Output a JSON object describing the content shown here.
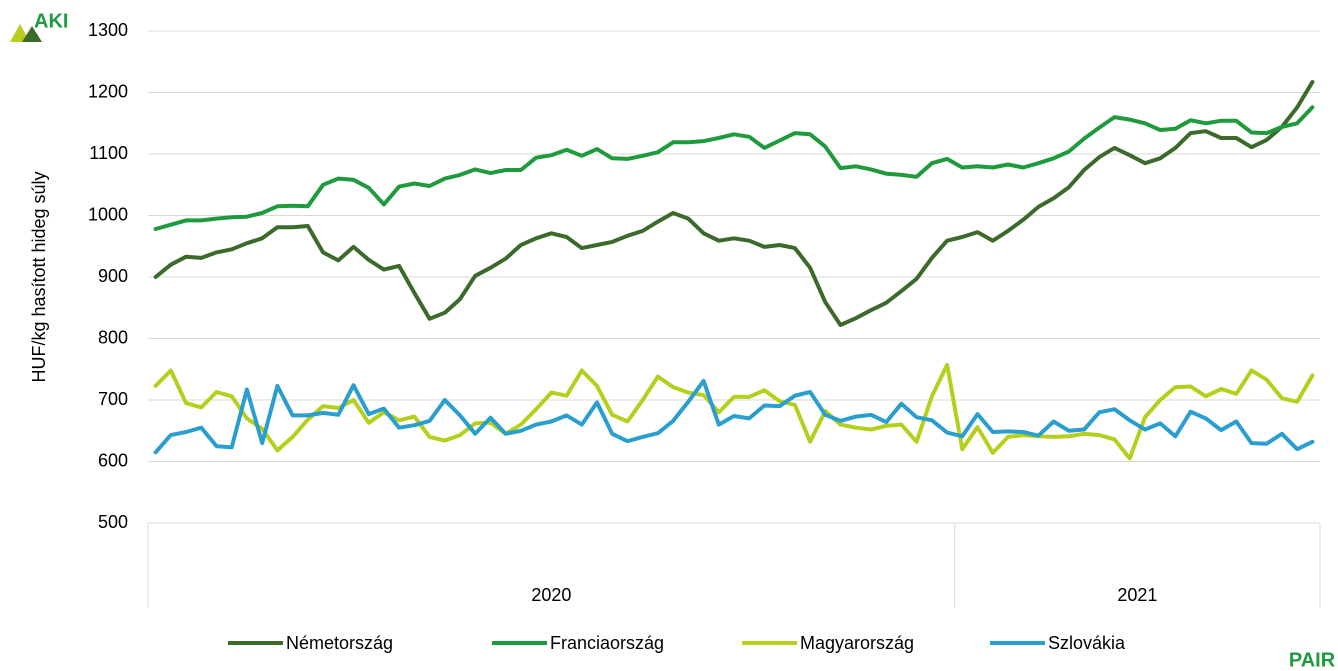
{
  "chart_data": {
    "type": "line",
    "y_label": "HUF/kg hasított hideg súly",
    "logo_left": "AKI",
    "logo_right": "PAIR",
    "groups": [
      {
        "label": "2020",
        "size": 53
      },
      {
        "label": "2021",
        "size": 24
      }
    ],
    "ylim": [
      500,
      1300
    ],
    "yticks": [
      500,
      600,
      700,
      800,
      900,
      1000,
      1100,
      1200,
      1300
    ],
    "grid": true,
    "legend": "bottom",
    "series": [
      {
        "name": "Németország",
        "color": "#3b6a2b",
        "values": [
          900,
          920,
          933,
          931,
          940,
          945,
          955,
          963,
          981,
          981,
          983,
          940,
          927,
          949,
          928,
          912,
          918,
          874,
          832,
          842,
          864,
          902,
          915,
          930,
          952,
          963,
          971,
          965,
          947,
          952,
          957,
          967,
          975,
          990,
          1004,
          995,
          971,
          959,
          963,
          959,
          949,
          952,
          947,
          915,
          859,
          822,
          833,
          846,
          858,
          877,
          897,
          931,
          959,
          965,
          973,
          959,
          975,
          993,
          1014,
          1028,
          1046,
          1074,
          1095,
          1110,
          1098,
          1085,
          1093,
          1110,
          1134,
          1137,
          1126,
          1126,
          1111,
          1123,
          1144,
          1176,
          1217
        ]
      },
      {
        "name": "Franciaország",
        "color": "#1f9a3d",
        "values": [
          978,
          985,
          992,
          992,
          995,
          997,
          998,
          1004,
          1015,
          1016,
          1015,
          1050,
          1060,
          1058,
          1045,
          1018,
          1047,
          1052,
          1048,
          1060,
          1066,
          1075,
          1069,
          1074,
          1074,
          1094,
          1098,
          1107,
          1097,
          1108,
          1093,
          1092,
          1097,
          1103,
          1119,
          1119,
          1121,
          1126,
          1132,
          1128,
          1110,
          1122,
          1134,
          1132,
          1112,
          1077,
          1080,
          1075,
          1068,
          1066,
          1063,
          1085,
          1092,
          1078,
          1080,
          1078,
          1083,
          1078,
          1085,
          1093,
          1104,
          1125,
          1143,
          1160,
          1156,
          1150,
          1139,
          1141,
          1155,
          1150,
          1154,
          1154,
          1135,
          1134,
          1144,
          1150,
          1176
        ]
      },
      {
        "name": "Magyarország",
        "color": "#b6cf1c",
        "values": [
          723,
          748,
          695,
          688,
          713,
          706,
          670,
          653,
          618,
          640,
          668,
          690,
          687,
          700,
          663,
          680,
          667,
          673,
          640,
          634,
          643,
          662,
          663,
          645,
          660,
          685,
          712,
          707,
          748,
          723,
          676,
          665,
          700,
          738,
          721,
          712,
          708,
          680,
          705,
          705,
          716,
          698,
          692,
          632,
          682,
          660,
          655,
          652,
          658,
          660,
          632,
          706,
          757,
          620,
          656,
          614,
          640,
          643,
          641,
          640,
          641,
          645,
          643,
          636,
          605,
          672,
          700,
          721,
          722,
          706,
          718,
          710,
          748,
          733,
          703,
          697,
          740
        ]
      },
      {
        "name": "Szlovákia",
        "color": "#2a9fcf",
        "values": [
          615,
          643,
          648,
          655,
          625,
          623,
          717,
          630,
          723,
          675,
          675,
          679,
          676,
          724,
          677,
          686,
          655,
          659,
          666,
          700,
          675,
          645,
          671,
          645,
          650,
          660,
          665,
          675,
          660,
          696,
          645,
          633,
          640,
          646,
          666,
          697,
          731,
          660,
          674,
          670,
          691,
          690,
          707,
          713,
          676,
          666,
          673,
          676,
          664,
          694,
          672,
          667,
          647,
          641,
          677,
          648,
          649,
          648,
          642,
          665,
          650,
          652,
          680,
          685,
          667,
          652,
          662,
          641,
          681,
          670,
          651,
          665,
          630,
          629,
          645,
          620,
          632
        ]
      }
    ]
  }
}
